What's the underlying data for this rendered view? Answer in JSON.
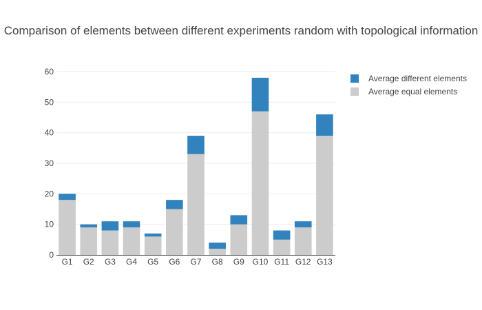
{
  "chart_data": {
    "type": "bar",
    "stacked": true,
    "title": "Comparison of elements between different experiments random with topological information",
    "xlabel": "",
    "ylabel": "",
    "categories": [
      "G1",
      "G2",
      "G3",
      "G4",
      "G5",
      "G6",
      "G7",
      "G8",
      "G9",
      "G10",
      "G11",
      "G12",
      "G13"
    ],
    "series": [
      {
        "name": "Average equal elements",
        "color": "#cccccc",
        "values": [
          18,
          9,
          8,
          9,
          6,
          15,
          33,
          2,
          10,
          47,
          5,
          9,
          39
        ]
      },
      {
        "name": "Average different elements",
        "color": "#3182bd",
        "values": [
          2,
          1,
          3,
          2,
          1,
          3,
          6,
          2,
          3,
          11,
          3,
          2,
          7
        ]
      }
    ],
    "legend_order": [
      "Average different elements",
      "Average equal elements"
    ],
    "ylim": [
      0,
      60
    ],
    "yticks": [
      0,
      10,
      20,
      30,
      40,
      50,
      60
    ],
    "grid": true,
    "legend_position": "top-right"
  }
}
